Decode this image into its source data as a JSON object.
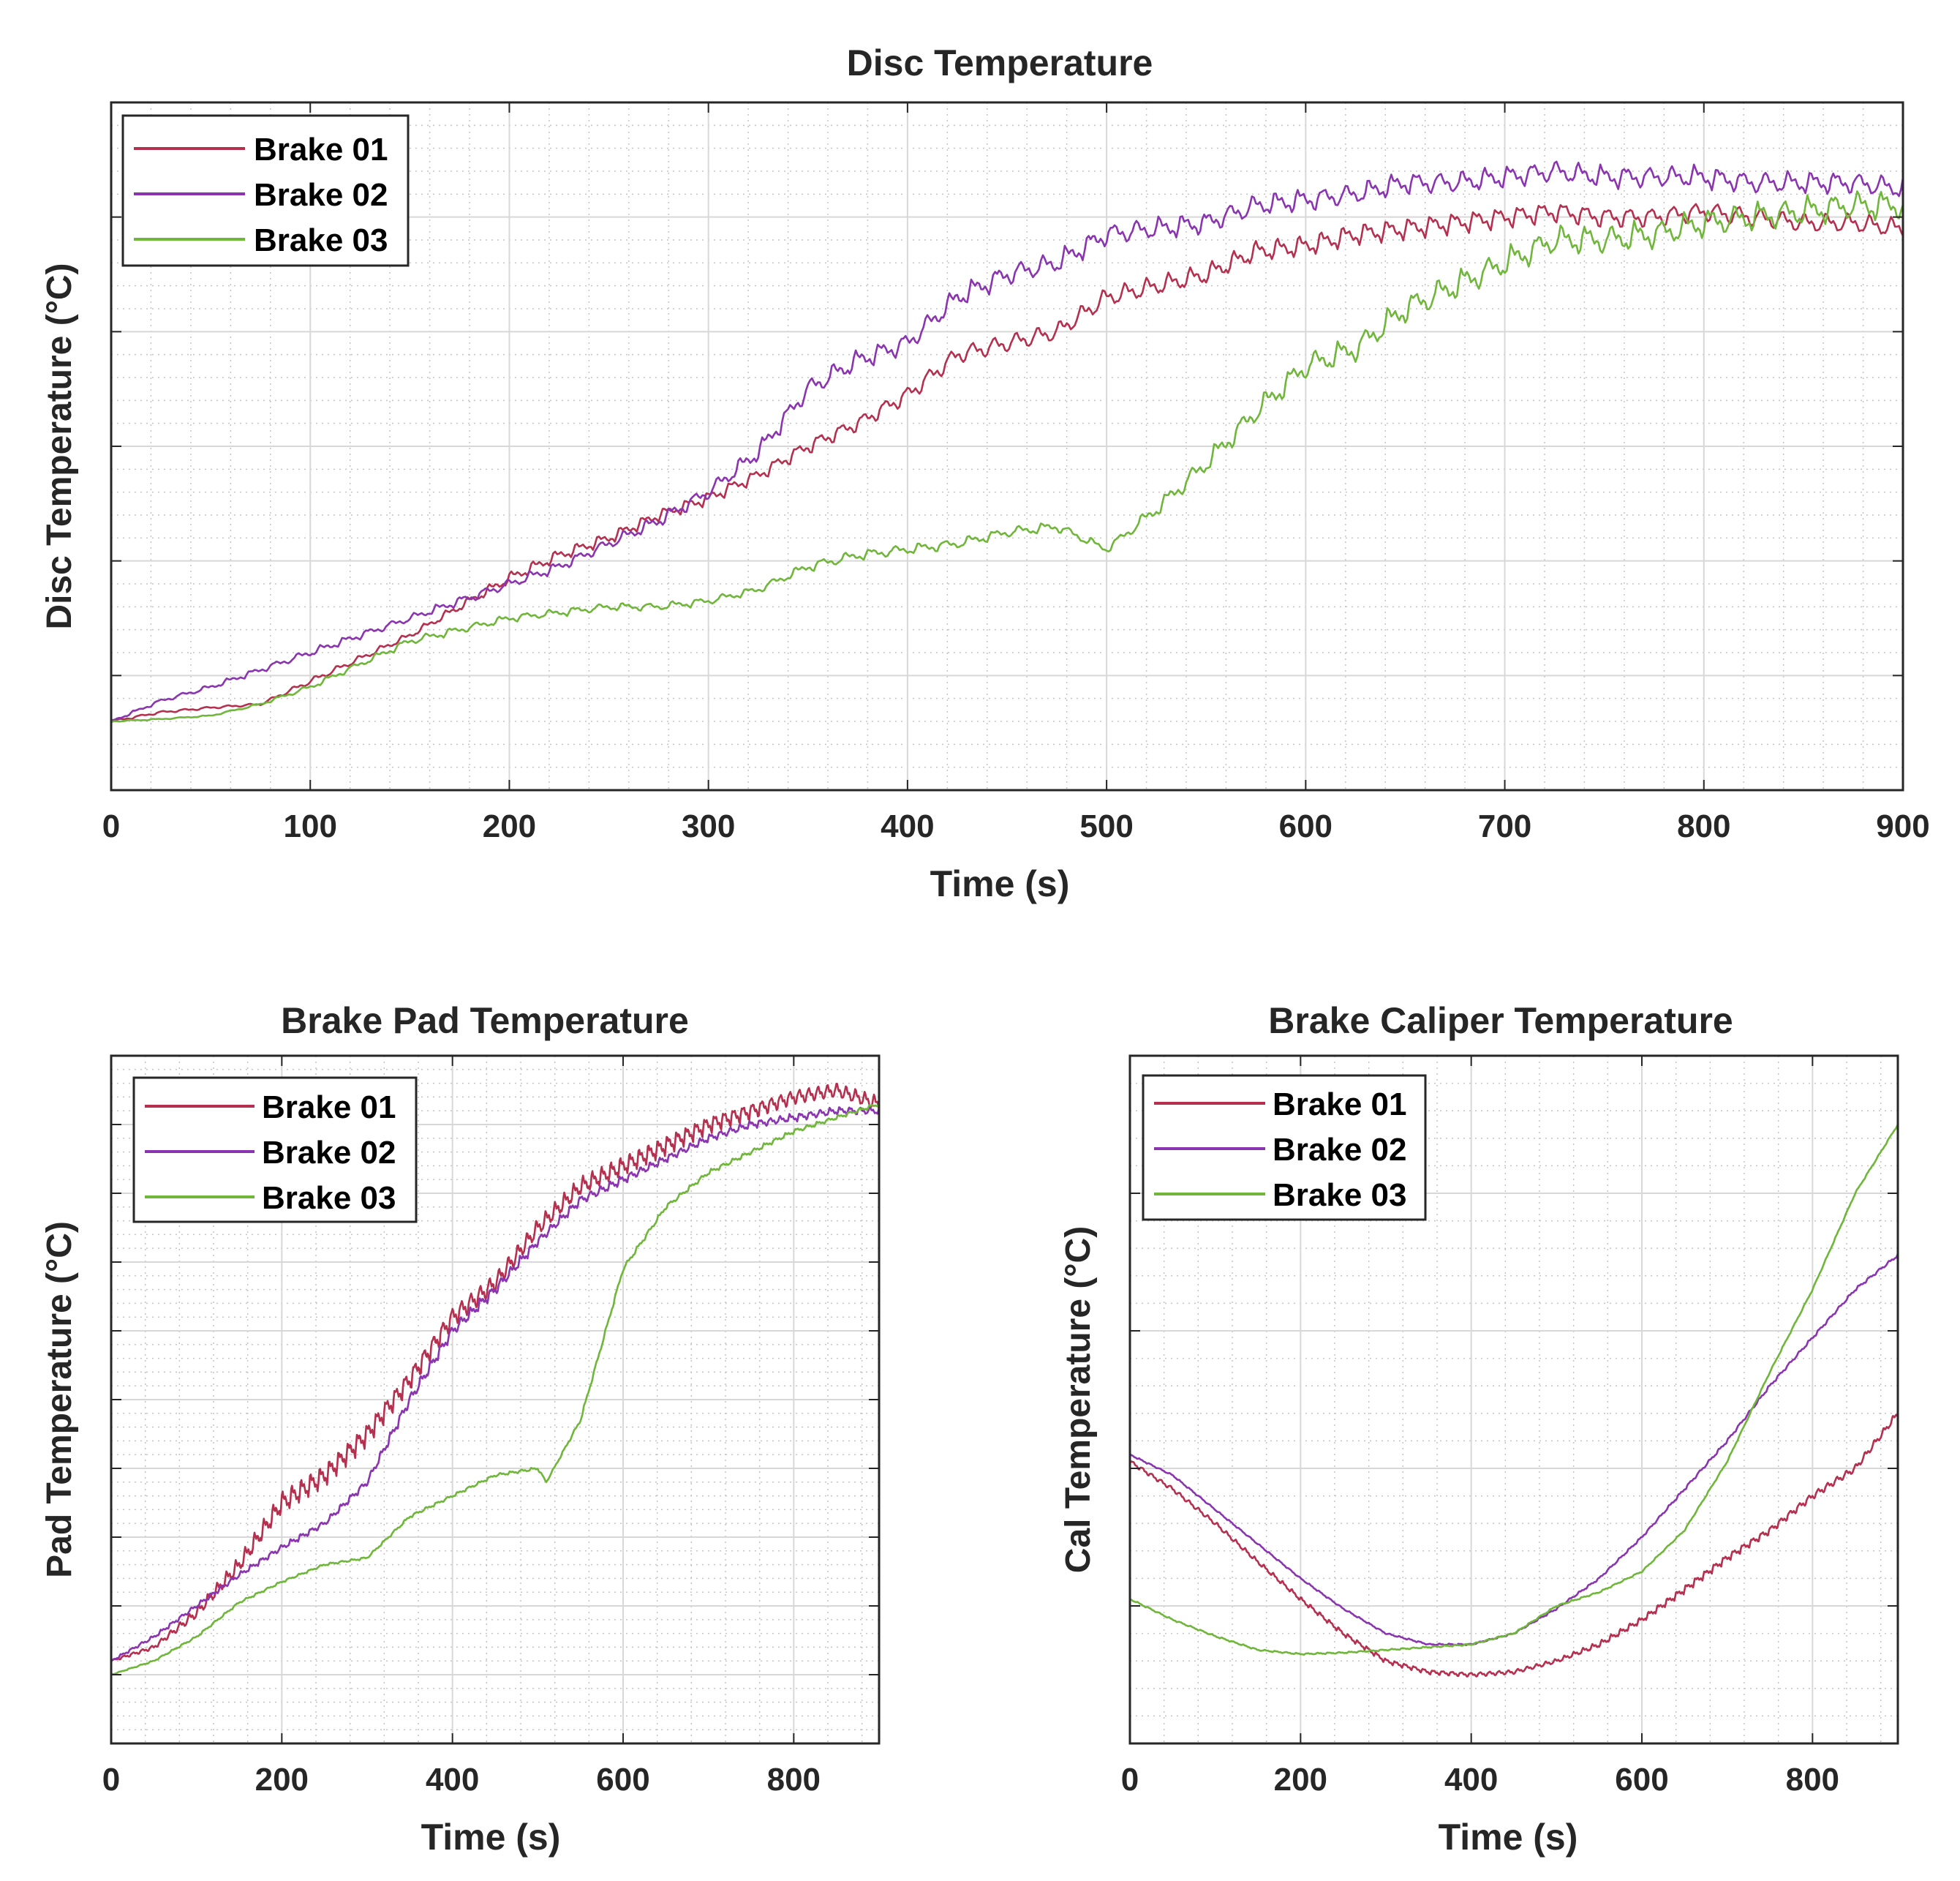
{
  "colors": {
    "background": "#ffffff",
    "axes_border": "#262626",
    "major_grid": "#d8d8d8",
    "minor_grid": "#c4c4c4",
    "brake01": "#b5304f",
    "brake02": "#8a34b0",
    "brake03": "#6fb63a"
  },
  "chart_data": [
    {
      "id": "disc",
      "type": "line",
      "title": "Disc Temperature",
      "xlabel": "Time (s)",
      "ylabel": "Disc Temperature (°C)",
      "xlim": [
        0,
        900
      ],
      "ylim": [
        0,
        6
      ],
      "xticks": [
        0,
        100,
        200,
        300,
        400,
        500,
        600,
        700,
        800,
        900
      ],
      "xtick_labels": [
        "0",
        "100",
        "200",
        "300",
        "400",
        "500",
        "600",
        "700",
        "800",
        "900"
      ],
      "yticks": [
        1,
        2,
        3,
        4,
        5
      ],
      "ytick_labels_visible": false,
      "grid": "major+minor",
      "legend": "top-left",
      "legend_labels": [
        "Brake 01",
        "Brake 02",
        "Brake 03"
      ],
      "series": [
        {
          "name": "Brake 01",
          "color": "#b5304f",
          "x": [
            0,
            25,
            50,
            75,
            100,
            125,
            150,
            175,
            200,
            225,
            250,
            275,
            300,
            325,
            350,
            375,
            400,
            425,
            450,
            475,
            500,
            525,
            550,
            575,
            600,
            625,
            650,
            675,
            700,
            725,
            750,
            775,
            800,
            825,
            850,
            875,
            900
          ],
          "y": [
            0.6,
            0.68,
            0.72,
            0.75,
            0.95,
            1.15,
            1.35,
            1.6,
            1.85,
            2.05,
            2.2,
            2.4,
            2.55,
            2.75,
            3.0,
            3.2,
            3.45,
            3.8,
            3.9,
            4.0,
            4.3,
            4.4,
            4.5,
            4.7,
            4.75,
            4.85,
            4.9,
            4.95,
            5.0,
            5.05,
            5.0,
            5.0,
            5.05,
            5.0,
            4.95,
            4.95,
            4.9
          ],
          "amp": [
            0.02,
            0.02,
            0.02,
            0.02,
            0.05,
            0.05,
            0.05,
            0.07,
            0.09,
            0.09,
            0.09,
            0.09,
            0.1,
            0.1,
            0.12,
            0.12,
            0.14,
            0.15,
            0.15,
            0.15,
            0.16,
            0.16,
            0.16,
            0.16,
            0.16,
            0.16,
            0.16,
            0.16,
            0.16,
            0.16,
            0.16,
            0.16,
            0.16,
            0.16,
            0.16,
            0.16,
            0.16
          ]
        },
        {
          "name": "Brake 02",
          "color": "#8a34b0",
          "x": [
            0,
            25,
            50,
            75,
            100,
            125,
            150,
            175,
            200,
            225,
            250,
            275,
            300,
            325,
            350,
            375,
            400,
            425,
            450,
            475,
            500,
            525,
            550,
            575,
            600,
            625,
            650,
            675,
            700,
            725,
            750,
            775,
            800,
            825,
            850,
            875,
            900
          ],
          "y": [
            0.6,
            0.78,
            0.9,
            1.05,
            1.2,
            1.35,
            1.5,
            1.65,
            1.8,
            1.95,
            2.15,
            2.35,
            2.6,
            2.95,
            3.5,
            3.75,
            3.9,
            4.3,
            4.5,
            4.6,
            4.85,
            4.9,
            4.95,
            5.1,
            5.15,
            5.2,
            5.3,
            5.3,
            5.35,
            5.4,
            5.35,
            5.35,
            5.35,
            5.3,
            5.3,
            5.3,
            5.25
          ],
          "amp": [
            0.02,
            0.03,
            0.04,
            0.05,
            0.06,
            0.06,
            0.06,
            0.07,
            0.08,
            0.08,
            0.09,
            0.1,
            0.12,
            0.14,
            0.16,
            0.16,
            0.16,
            0.17,
            0.17,
            0.17,
            0.17,
            0.17,
            0.17,
            0.17,
            0.17,
            0.17,
            0.17,
            0.17,
            0.17,
            0.17,
            0.17,
            0.17,
            0.17,
            0.17,
            0.17,
            0.17,
            0.17
          ]
        },
        {
          "name": "Brake 03",
          "color": "#6fb63a",
          "x": [
            0,
            25,
            50,
            75,
            100,
            125,
            150,
            175,
            200,
            225,
            250,
            275,
            300,
            325,
            350,
            375,
            400,
            425,
            450,
            475,
            500,
            525,
            550,
            575,
            600,
            625,
            650,
            675,
            700,
            725,
            750,
            775,
            800,
            825,
            850,
            875,
            900
          ],
          "y": [
            0.6,
            0.62,
            0.65,
            0.75,
            0.9,
            1.1,
            1.3,
            1.4,
            1.5,
            1.55,
            1.6,
            1.6,
            1.65,
            1.75,
            1.95,
            2.05,
            2.1,
            2.15,
            2.25,
            2.3,
            2.1,
            2.45,
            2.85,
            3.3,
            3.7,
            3.85,
            4.2,
            4.4,
            4.6,
            4.8,
            4.8,
            4.85,
            4.95,
            5.0,
            5.05,
            5.1,
            5.1
          ],
          "amp": [
            0.01,
            0.01,
            0.01,
            0.02,
            0.04,
            0.05,
            0.06,
            0.06,
            0.06,
            0.06,
            0.06,
            0.06,
            0.06,
            0.06,
            0.08,
            0.08,
            0.08,
            0.08,
            0.08,
            0.08,
            0.06,
            0.12,
            0.16,
            0.18,
            0.2,
            0.2,
            0.22,
            0.22,
            0.22,
            0.22,
            0.22,
            0.22,
            0.22,
            0.22,
            0.22,
            0.22,
            0.22
          ]
        }
      ]
    },
    {
      "id": "pad",
      "type": "line",
      "title": "Brake Pad Temperature",
      "xlabel": "Time (s)",
      "ylabel": "Pad Temperature (°C)",
      "xlim": [
        0,
        900
      ],
      "ylim": [
        0,
        10
      ],
      "xticks": [
        0,
        200,
        400,
        600,
        800
      ],
      "xtick_labels": [
        "0",
        "200",
        "400",
        "600",
        "800"
      ],
      "yticks": [
        1,
        2,
        3,
        4,
        5,
        6,
        7,
        8,
        9,
        10
      ],
      "ytick_labels_visible": false,
      "grid": "major+minor",
      "legend": "top-left",
      "legend_labels": [
        "Brake 01",
        "Brake 02",
        "Brake 03"
      ],
      "series": [
        {
          "name": "Brake 01",
          "color": "#b5304f",
          "x": [
            0,
            50,
            100,
            150,
            200,
            250,
            300,
            350,
            400,
            450,
            500,
            550,
            600,
            650,
            700,
            750,
            800,
            850,
            900
          ],
          "y": [
            1.2,
            1.4,
            1.9,
            2.6,
            3.5,
            3.9,
            4.5,
            5.3,
            6.2,
            6.7,
            7.5,
            8.1,
            8.4,
            8.7,
            9.0,
            9.2,
            9.4,
            9.5,
            9.3
          ],
          "amp": [
            0.03,
            0.06,
            0.15,
            0.22,
            0.28,
            0.28,
            0.28,
            0.28,
            0.28,
            0.26,
            0.24,
            0.24,
            0.24,
            0.24,
            0.22,
            0.22,
            0.2,
            0.2,
            0.2
          ]
        },
        {
          "name": "Brake 02",
          "color": "#8a34b0",
          "x": [
            0,
            50,
            100,
            150,
            200,
            250,
            300,
            350,
            400,
            450,
            500,
            550,
            600,
            650,
            700,
            750,
            800,
            850,
            900
          ],
          "y": [
            1.2,
            1.55,
            2.0,
            2.45,
            2.85,
            3.2,
            3.8,
            5.0,
            6.0,
            6.6,
            7.3,
            7.9,
            8.2,
            8.5,
            8.8,
            9.0,
            9.1,
            9.2,
            9.2
          ],
          "amp": [
            0.03,
            0.05,
            0.06,
            0.07,
            0.08,
            0.08,
            0.1,
            0.15,
            0.15,
            0.15,
            0.12,
            0.12,
            0.12,
            0.1,
            0.1,
            0.1,
            0.1,
            0.1,
            0.1
          ]
        },
        {
          "name": "Brake 03",
          "color": "#6fb63a",
          "x": [
            0,
            50,
            100,
            150,
            200,
            250,
            300,
            350,
            400,
            450,
            500,
            510,
            550,
            600,
            650,
            700,
            750,
            800,
            850,
            900
          ],
          "y": [
            1.0,
            1.2,
            1.55,
            2.05,
            2.35,
            2.6,
            2.7,
            3.3,
            3.6,
            3.9,
            4.0,
            3.8,
            4.7,
            6.9,
            7.8,
            8.3,
            8.6,
            8.9,
            9.1,
            9.3
          ],
          "amp": [
            0.01,
            0.02,
            0.03,
            0.03,
            0.03,
            0.03,
            0.03,
            0.04,
            0.04,
            0.04,
            0.04,
            0.02,
            0.05,
            0.06,
            0.06,
            0.06,
            0.06,
            0.06,
            0.05,
            0.05
          ]
        }
      ]
    },
    {
      "id": "caliper",
      "type": "line",
      "title": "Brake Caliper Temperature",
      "xlabel": "Time (s)",
      "ylabel": "Cal Temperature (°C)",
      "xlim": [
        0,
        900
      ],
      "ylim": [
        0,
        5
      ],
      "xticks": [
        0,
        200,
        400,
        600,
        800
      ],
      "xtick_labels": [
        "0",
        "200",
        "400",
        "600",
        "800"
      ],
      "yticks": [
        1,
        2,
        3,
        4
      ],
      "ytick_labels_visible": false,
      "grid": "major+minor",
      "legend": "top-left",
      "legend_labels": [
        "Brake 01",
        "Brake 02",
        "Brake 03"
      ],
      "series": [
        {
          "name": "Brake 01",
          "color": "#b5304f",
          "x": [
            0,
            50,
            100,
            150,
            200,
            250,
            300,
            350,
            400,
            450,
            500,
            550,
            600,
            650,
            700,
            750,
            800,
            850,
            900
          ],
          "y": [
            2.05,
            1.85,
            1.6,
            1.32,
            1.05,
            0.8,
            0.6,
            0.52,
            0.5,
            0.52,
            0.6,
            0.72,
            0.9,
            1.12,
            1.35,
            1.55,
            1.8,
            2.0,
            2.4
          ],
          "amp": [
            0.03,
            0.03,
            0.03,
            0.03,
            0.03,
            0.03,
            0.03,
            0.03,
            0.03,
            0.03,
            0.03,
            0.04,
            0.04,
            0.05,
            0.05,
            0.05,
            0.05,
            0.05,
            0.05
          ]
        },
        {
          "name": "Brake 02",
          "color": "#8a34b0",
          "x": [
            0,
            50,
            100,
            150,
            200,
            250,
            300,
            350,
            400,
            450,
            500,
            550,
            600,
            650,
            700,
            750,
            800,
            850,
            900
          ],
          "y": [
            2.1,
            1.95,
            1.7,
            1.45,
            1.2,
            0.98,
            0.8,
            0.72,
            0.72,
            0.8,
            0.98,
            1.2,
            1.5,
            1.85,
            2.2,
            2.6,
            2.95,
            3.3,
            3.55
          ],
          "amp": [
            0.01,
            0.01,
            0.01,
            0.01,
            0.01,
            0.01,
            0.01,
            0.01,
            0.01,
            0.01,
            0.015,
            0.015,
            0.015,
            0.02,
            0.02,
            0.02,
            0.02,
            0.02,
            0.02
          ]
        },
        {
          "name": "Brake 03",
          "color": "#6fb63a",
          "x": [
            0,
            50,
            100,
            150,
            200,
            250,
            300,
            350,
            400,
            450,
            500,
            550,
            600,
            650,
            700,
            750,
            800,
            850,
            900
          ],
          "y": [
            1.05,
            0.9,
            0.78,
            0.68,
            0.65,
            0.66,
            0.68,
            0.7,
            0.72,
            0.8,
            1.0,
            1.1,
            1.25,
            1.55,
            2.05,
            2.7,
            3.3,
            4.0,
            4.5
          ],
          "amp": [
            0.01,
            0.01,
            0.01,
            0.01,
            0.01,
            0.01,
            0.01,
            0.01,
            0.01,
            0.01,
            0.01,
            0.01,
            0.01,
            0.01,
            0.01,
            0.01,
            0.01,
            0.01,
            0.01
          ]
        }
      ]
    }
  ]
}
